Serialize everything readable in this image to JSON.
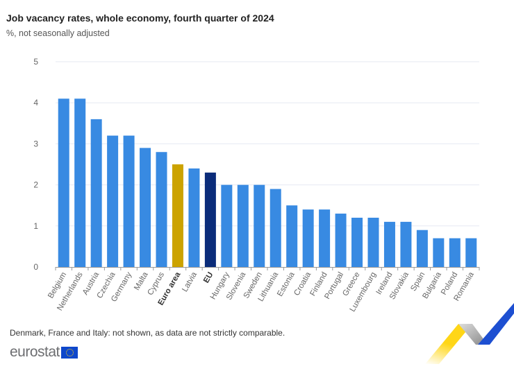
{
  "chart_data": {
    "type": "bar",
    "title": "Job vacancy rates, whole economy, fourth quarter of 2024",
    "subtitle": "%, not seasonally adjusted",
    "xlabel": "",
    "ylabel": "",
    "ylim": [
      0,
      5
    ],
    "yticks": [
      "0",
      "1",
      "2",
      "3",
      "4",
      "5"
    ],
    "grid": true,
    "categories": [
      "Belgium",
      "Netherlands",
      "Austria",
      "Czechia",
      "Germany",
      "Malta",
      "Cyprus",
      "Euro area",
      "Latvia",
      "EU",
      "Hungary",
      "Slovenia",
      "Sweden",
      "Lithuania",
      "Estonia",
      "Croatia",
      "Finland",
      "Portugal",
      "Greece",
      "Luxembourg",
      "Ireland",
      "Slovakia",
      "Spain",
      "Bulgaria",
      "Poland",
      "Romania"
    ],
    "values": [
      4.1,
      4.1,
      3.6,
      3.2,
      3.2,
      2.9,
      2.8,
      2.5,
      2.4,
      2.3,
      2.0,
      2.0,
      2.0,
      1.9,
      1.5,
      1.4,
      1.4,
      1.3,
      1.2,
      1.2,
      1.1,
      1.1,
      0.9,
      0.7,
      0.7,
      0.7
    ],
    "highlight": {
      "Euro area": "#cca300",
      "EU": "#0b2c7a"
    },
    "bold_categories": [
      "Euro area",
      "EU"
    ],
    "default_color": "#388ae2",
    "note": "Denmark, France and Italy: not shown, as data are not strictly comparable."
  },
  "branding": {
    "logo_text": "eurostat"
  }
}
